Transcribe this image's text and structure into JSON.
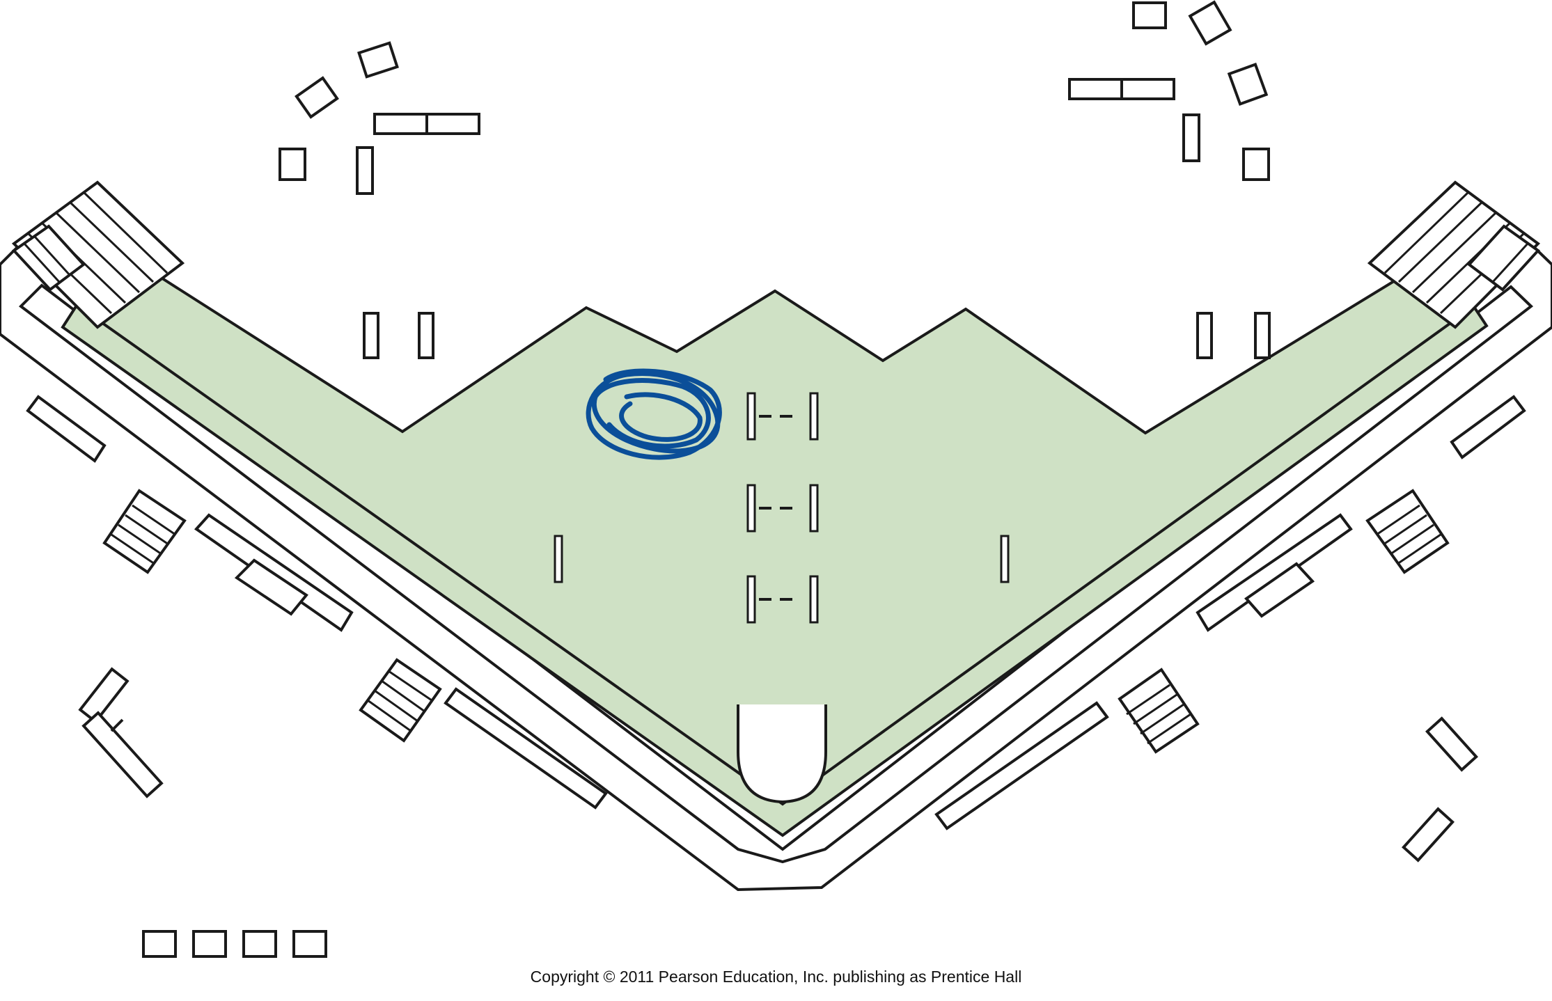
{
  "diagram": {
    "colors": {
      "field": "#cfe1c5",
      "outline": "#1a1a1a",
      "mark": "#0b4f99",
      "background": "#ffffff"
    },
    "icons": {
      "mark": "blue-scribble-icon",
      "bench": "dash-bench-icon"
    }
  },
  "footer": {
    "copyright": "Copyright © 2011 Pearson Education, Inc. publishing as Prentice Hall"
  }
}
